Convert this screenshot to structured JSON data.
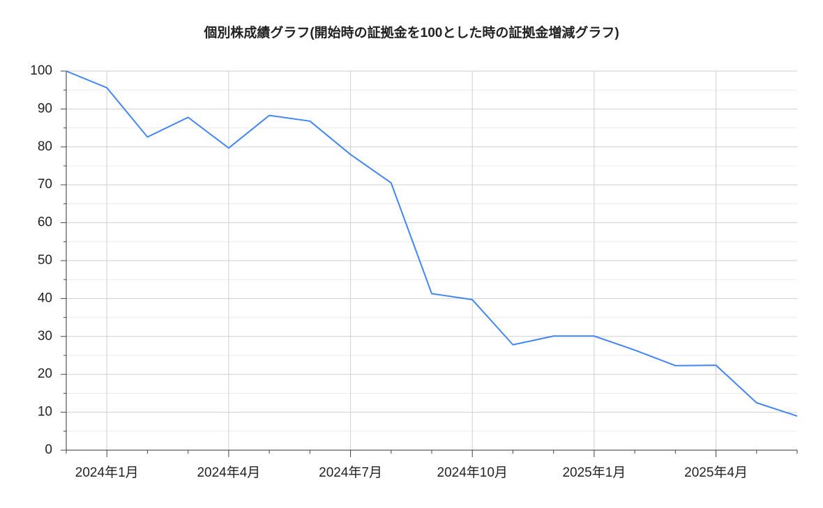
{
  "chart_data": {
    "type": "line",
    "title": "個別株成績グラフ(開始時の証拠金を100とした時の証拠金増減グラフ)",
    "categories": [
      null,
      "2024年1月",
      null,
      null,
      "2024年4月",
      null,
      null,
      "2024年7月",
      null,
      null,
      "2024年10月",
      null,
      null,
      "2025年1月",
      null,
      null,
      "2025年4月",
      null,
      null
    ],
    "series": [
      {
        "name": "証拠金",
        "color": "#4285f4",
        "values": [
          100,
          95.6,
          82.6,
          87.8,
          79.7,
          88.3,
          86.8,
          78,
          70.5,
          41.3,
          39.7,
          27.8,
          30.1,
          30.1,
          26.4,
          22.3,
          22.4,
          12.5,
          9
        ]
      }
    ],
    "ylim": [
      0,
      100
    ],
    "yticks": [
      0,
      10,
      20,
      30,
      40,
      50,
      60,
      70,
      80,
      90,
      100
    ],
    "grid": true
  }
}
